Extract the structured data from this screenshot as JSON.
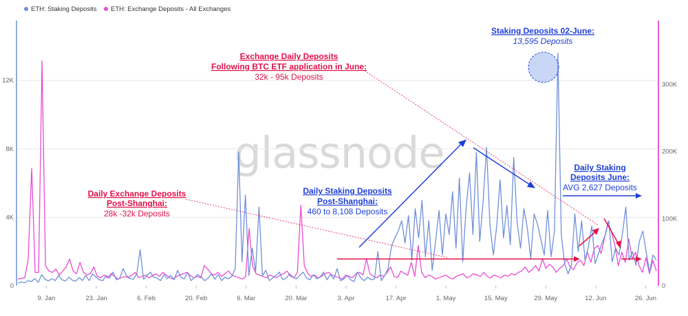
{
  "chart_data": {
    "type": "line",
    "legend_position": "top-left",
    "grid": "horizontal",
    "watermark": "glassnode",
    "x_tick_labels": [
      "9. Jan",
      "23. Jan",
      "6. Feb",
      "20. Feb",
      "6. Mar",
      "20. Mar",
      "3. Apr",
      "17. Apr",
      "1. May",
      "15. May",
      "29. May",
      "12. Jun",
      "26. Jun"
    ],
    "x_range": [
      1,
      180
    ],
    "y_left": {
      "ticks": [
        "0",
        "4K",
        "8K",
        "12K"
      ],
      "tick_values": [
        0,
        4000,
        8000,
        12000
      ],
      "range": [
        0,
        15500
      ],
      "color": "#6b8fd6"
    },
    "y_right": {
      "ticks": [
        "0",
        "100K",
        "200K",
        "300K"
      ],
      "tick_values": [
        0,
        100000,
        200000,
        300000
      ],
      "range": [
        0,
        395000
      ],
      "color": "#e020c8"
    },
    "series": [
      {
        "name": "ETH: Staking Deposits",
        "axis": "left",
        "color": "#6f8fd8",
        "values": [
          150,
          220,
          180,
          300,
          250,
          420,
          200,
          650,
          380,
          280,
          420,
          300,
          600,
          350,
          280,
          500,
          330,
          260,
          480,
          310,
          600,
          300,
          700,
          500,
          350,
          300,
          600,
          450,
          800,
          350,
          450,
          1000,
          600,
          420,
          380,
          700,
          2100,
          380,
          600,
          800,
          500,
          450,
          300,
          650,
          420,
          600,
          350,
          900,
          500,
          400,
          780,
          300,
          480,
          650,
          500,
          300,
          450,
          700,
          380,
          650,
          300,
          500,
          400,
          550,
          1000,
          7800,
          1400,
          5300,
          600,
          2200,
          800,
          4600,
          600,
          900,
          300,
          450,
          600,
          800,
          350,
          450,
          700,
          500,
          400,
          600,
          800,
          450,
          350,
          650,
          400,
          500,
          800,
          350,
          650,
          400,
          1000,
          300,
          400,
          600,
          350,
          250,
          800,
          450,
          300,
          500,
          350,
          400,
          2000,
          300,
          600,
          1000,
          2300,
          2800,
          3200,
          3800,
          2500,
          4100,
          1500,
          4500,
          2800,
          5000,
          1700,
          3800,
          900,
          2600,
          4400,
          1800,
          4200,
          3000,
          5500,
          2200,
          6300,
          1400,
          4600,
          6600,
          3000,
          7800,
          2600,
          5000,
          8100,
          3600,
          1800,
          3500,
          6200,
          2800,
          4700,
          2400,
          7500,
          3700,
          2200,
          4500,
          3400,
          1600,
          4200,
          3600,
          2700,
          1800,
          4400,
          1700,
          3200,
          13595,
          3000,
          1300,
          700,
          1200,
          4200,
          2000,
          3800,
          1500,
          2300,
          3500,
          1300,
          1900,
          2500,
          3000,
          3800,
          1400,
          2200,
          1800,
          3000,
          4600,
          1500,
          2000,
          1200,
          2600,
          3200,
          2000,
          800,
          1800,
          1500
        ]
      },
      {
        "name": "ETH: Exchange Deposits - All Exchanges",
        "axis": "right",
        "color": "#e84ad4",
        "values": [
          10000,
          11000,
          12000,
          40000,
          175000,
          20000,
          20000,
          335000,
          30000,
          22000,
          20000,
          25000,
          16000,
          22000,
          28000,
          40000,
          22000,
          18000,
          35000,
          20000,
          16000,
          18000,
          28000,
          14000,
          12000,
          16000,
          12000,
          18000,
          14000,
          10000,
          12000,
          14000,
          12000,
          16000,
          20000,
          12000,
          14000,
          16000,
          12000,
          15000,
          18000,
          14000,
          20000,
          16000,
          12000,
          10000,
          14000,
          16000,
          18000,
          20000,
          15000,
          12000,
          14000,
          12000,
          30000,
          25000,
          18000,
          16000,
          20000,
          14000,
          18000,
          22000,
          16000,
          14000,
          12000,
          10000,
          14000,
          85000,
          30000,
          18000,
          16000,
          14000,
          12000,
          16000,
          14000,
          12000,
          16000,
          18000,
          22000,
          14000,
          12000,
          20000,
          120000,
          30000,
          18000,
          14000,
          16000,
          12000,
          14000,
          18000,
          20000,
          16000,
          14000,
          12000,
          10000,
          16000,
          14000,
          12000,
          18000,
          20000,
          16000,
          40000,
          18000,
          14000,
          12000,
          16000,
          14000,
          20000,
          28000,
          14000,
          12000,
          22000,
          18000,
          16000,
          35000,
          14000,
          60000,
          20000,
          12000,
          16000,
          14000,
          10000,
          12000,
          14000,
          16000,
          12000,
          10000,
          14000,
          16000,
          18000,
          12000,
          14000,
          18000,
          16000,
          14000,
          20000,
          14000,
          12000,
          16000,
          14000,
          12000,
          16000,
          14000,
          18000,
          16000,
          20000,
          22000,
          28000,
          20000,
          24000,
          30000,
          22000,
          40000,
          26000,
          32000,
          28000,
          20000,
          26000,
          30000,
          40000,
          28000,
          24000,
          34000,
          38000,
          30000,
          50000,
          35000,
          55000,
          60000,
          48000,
          72000,
          95000,
          80000,
          60000,
          30000,
          50000,
          35000,
          70000,
          40000,
          50000,
          30000,
          20000,
          42000,
          18000,
          38000,
          22000
        ]
      }
    ]
  },
  "annotations": {
    "exchange_june": {
      "title_1": "Exchange Daily Deposits",
      "title_2": "Following BTC ETF application in June:",
      "sub": "32k - 95k Deposits"
    },
    "staking_peak": {
      "title": "Staking Deposits 02-June:",
      "sub": "13,595 Deposits"
    },
    "exchange_shanghai": {
      "title_1": "Daily Exchange Deposits",
      "title_2": "Post-Shanghai:",
      "sub": "28k -32k Deposits"
    },
    "staking_shanghai": {
      "title_1": "Daily Staking Deposits",
      "title_2": "Post-Shanghai:",
      "sub": "460 to 8,108 Deposits"
    },
    "staking_june": {
      "title_1": "Daily Staking",
      "title_2": "Deposits June:",
      "sub": "AVG 2,627 Deposits"
    }
  },
  "colors": {
    "annotation_blue": "#1f3fd6",
    "annotation_red": "#e0104a",
    "grid": "#e8e8e8"
  }
}
